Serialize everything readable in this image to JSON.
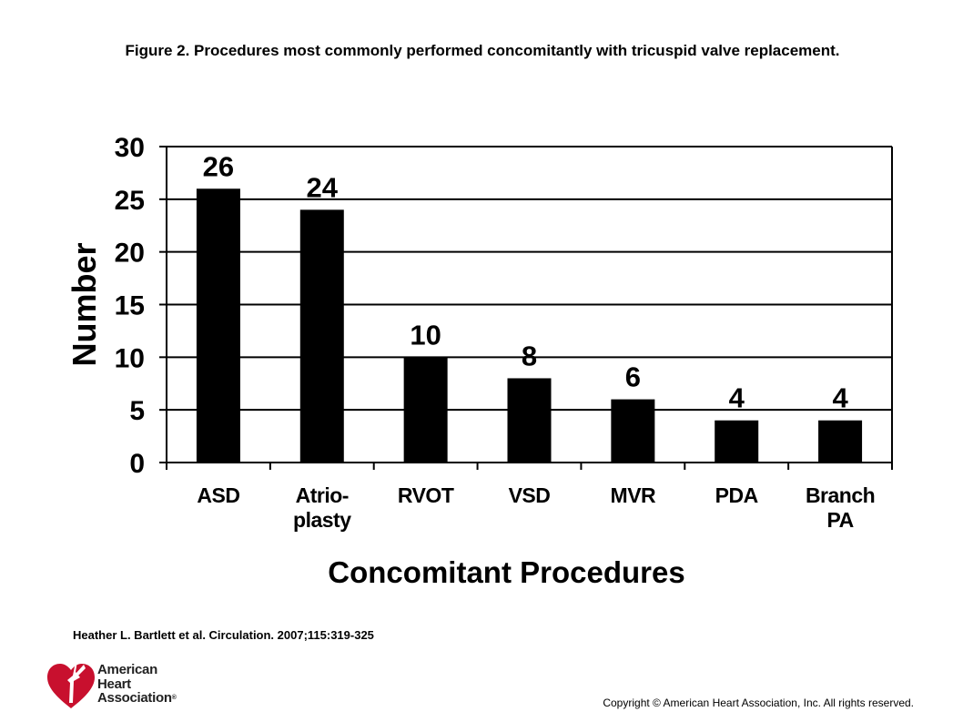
{
  "figure_title": "Figure 2. Procedures most commonly performed concomitantly with tricuspid valve replacement.",
  "citation": "Heather L. Bartlett et al. Circulation. 2007;115:319-325",
  "copyright": "Copyright © American Heart Association, Inc. All rights reserved.",
  "logo": {
    "line1": "American",
    "line2": "Heart",
    "line3": "Association",
    "registered": "®",
    "icon": "heart-torch-icon",
    "color": "#c8102e"
  },
  "chart_data": {
    "type": "bar",
    "categories": [
      [
        "ASD"
      ],
      [
        "Atrio-",
        "plasty"
      ],
      [
        "RVOT"
      ],
      [
        "VSD"
      ],
      [
        "MVR"
      ],
      [
        "PDA"
      ],
      [
        "Branch",
        "PA"
      ]
    ],
    "values": [
      26,
      24,
      10,
      8,
      6,
      4,
      4
    ],
    "data_labels": [
      "26",
      "24",
      "10",
      "8",
      "6",
      "4",
      "4"
    ],
    "xlabel": "Concomitant Procedures",
    "ylabel": "Number",
    "ylim": [
      0,
      30
    ],
    "yticks": [
      0,
      5,
      10,
      15,
      20,
      25,
      30
    ],
    "grid": true,
    "bar_color": "#000000"
  }
}
